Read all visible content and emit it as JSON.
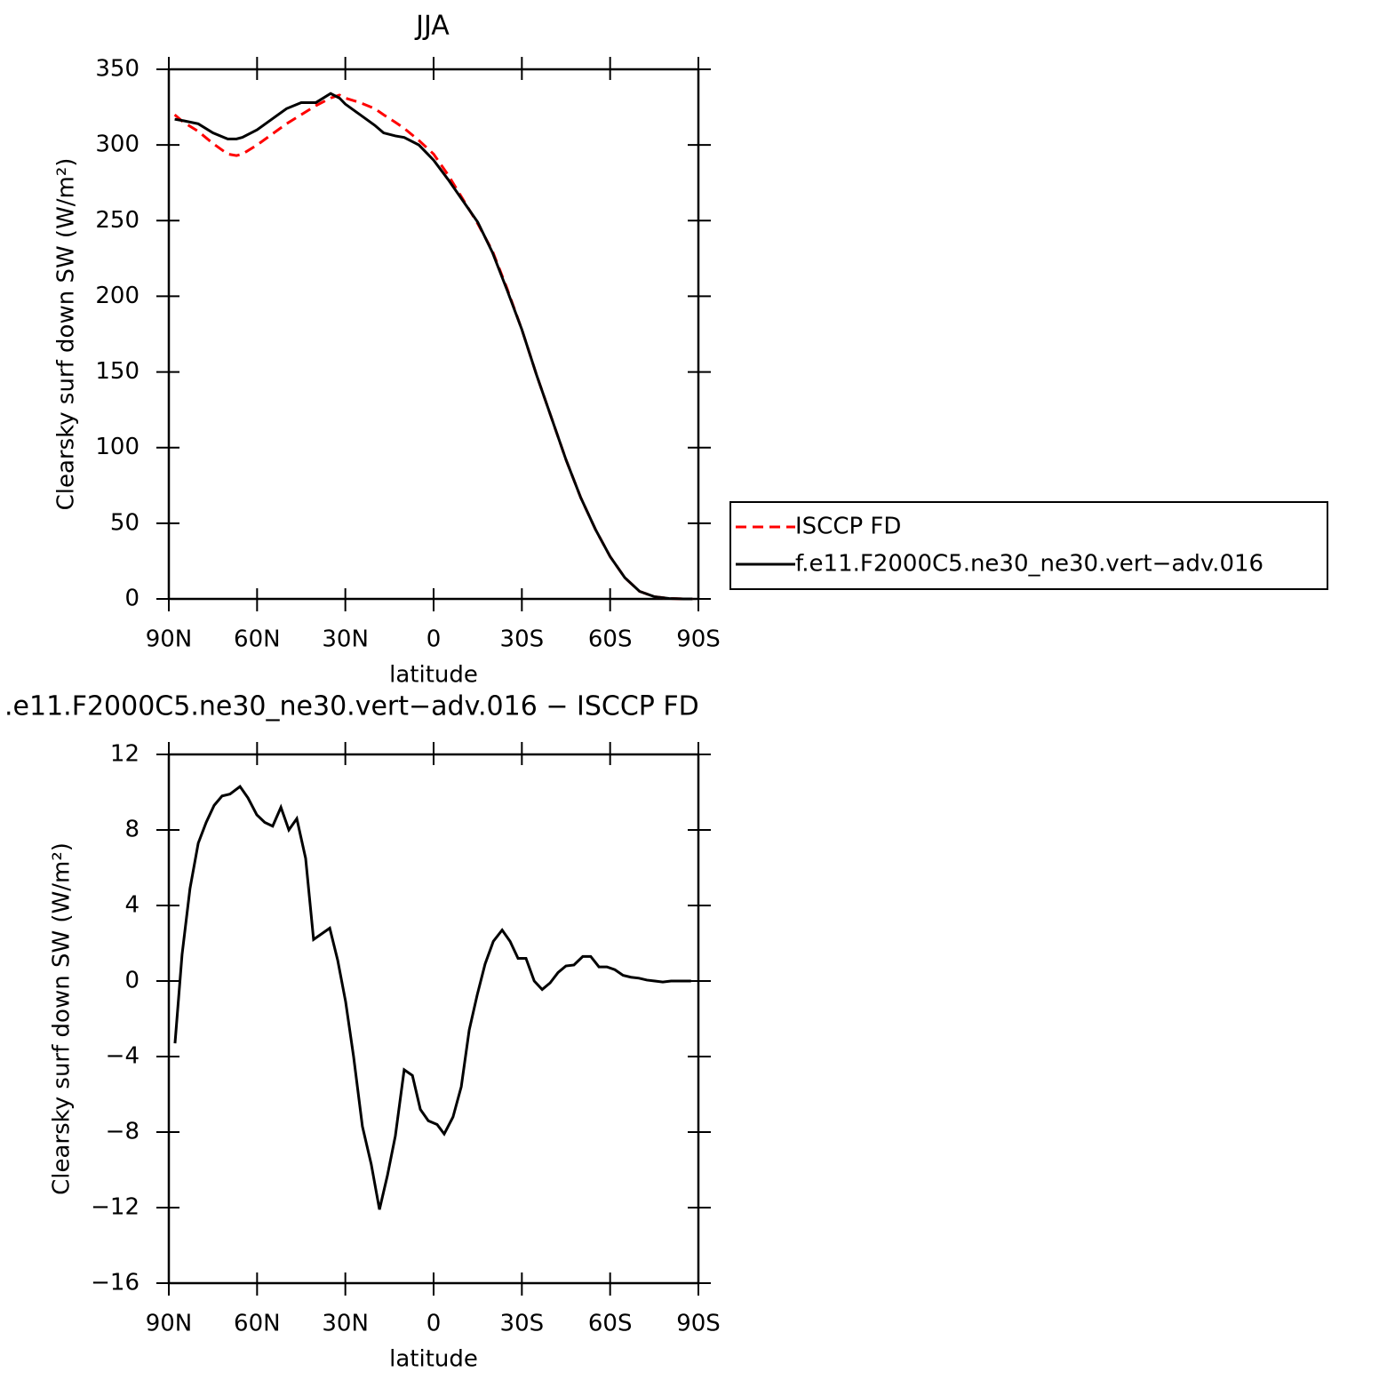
{
  "chart_data": [
    {
      "type": "line",
      "title": "JJA",
      "xlabel": "latitude",
      "ylabel": "Clearsky surf down SW (W/m²)",
      "x": [
        88,
        85,
        80,
        75,
        70,
        67,
        65,
        60,
        55,
        50,
        45,
        40,
        35,
        32,
        30,
        25,
        20,
        17,
        13,
        10,
        5,
        0,
        -5,
        -10,
        -15,
        -20,
        -25,
        -30,
        -35,
        -40,
        -45,
        -50,
        -55,
        -60,
        -65,
        -70,
        -75,
        -80,
        -85,
        -88
      ],
      "series": [
        {
          "name": "ISCCP FD",
          "color": "#ff0000",
          "dashed": true,
          "values": [
            320,
            315,
            309,
            301,
            294,
            293,
            294,
            300,
            307,
            314,
            320,
            326,
            331,
            333,
            331,
            328,
            324,
            320,
            315,
            311,
            303,
            294,
            280,
            264,
            248,
            230,
            205,
            178,
            148,
            120,
            92,
            67,
            46,
            28,
            14,
            5,
            1.5,
            0.3,
            0,
            0
          ]
        },
        {
          "name": "f.e11.F2000C5.ne30_ne30.vert−adv.016",
          "color": "#000000",
          "dashed": false,
          "values": [
            317,
            316,
            314,
            308,
            304,
            304,
            305,
            310,
            317,
            324,
            328,
            328,
            334,
            331,
            327,
            320,
            313,
            308,
            306,
            305,
            300,
            290,
            277,
            263,
            249,
            229,
            204,
            178,
            148,
            120,
            92,
            67,
            46,
            28,
            14,
            5,
            1.5,
            0.3,
            0,
            0
          ]
        }
      ],
      "xlim": [
        90,
        -90
      ],
      "xticks": [
        {
          "value": 90,
          "label": "90N"
        },
        {
          "value": 60,
          "label": "60N"
        },
        {
          "value": 30,
          "label": "30N"
        },
        0,
        {
          "value": -30,
          "label": "30S"
        },
        {
          "value": -60,
          "label": "60S"
        },
        {
          "value": -90,
          "label": "90S"
        }
      ],
      "ylim": [
        0,
        350
      ],
      "yticks": [
        0,
        50,
        100,
        150,
        200,
        250,
        300,
        350
      ],
      "legend": true
    },
    {
      "type": "line",
      "title": ".e11.F2000C5.ne30_ne30.vert−adv.016 − ISCCP FD",
      "xlabel": "latitude",
      "ylabel": "Clearsky surf down SW (W/m²)",
      "x": [
        87.9,
        85.5,
        82.8,
        80,
        77.3,
        74.6,
        71.9,
        69.2,
        65.8,
        63.1,
        60.1,
        57.4,
        54.7,
        51.9,
        49.2,
        46.5,
        43.5,
        40.8,
        35.3,
        32.6,
        29.9,
        27.2,
        24.2,
        21.2,
        18.4,
        15.7,
        13,
        10,
        7.2,
        4.5,
        1.8,
        -1.2,
        -3.6,
        -6.6,
        -9.4,
        -12.1,
        -14.8,
        -17.5,
        -20.3,
        -23.3,
        -26,
        -28.7,
        -31.4,
        -34.2,
        -36.9,
        -39.6,
        -42.3,
        -45,
        -47.7,
        -50.7,
        -53.4,
        -56.2,
        -58.9,
        -61.6,
        -64.4,
        -67.1,
        -69.8,
        -72.5,
        -75.2,
        -77.9,
        -80.7,
        -83.4,
        -87.5
      ],
      "series": [
        {
          "color": "#000000",
          "dashed": false,
          "values": [
            -3.3,
            1.4,
            4.9,
            7.3,
            8.4,
            9.3,
            9.8,
            9.9,
            10.3,
            9.7,
            8.8,
            8.4,
            8.2,
            9.2,
            8.0,
            8.6,
            6.5,
            2.2,
            2.8,
            1.1,
            -1.1,
            -4.0,
            -7.7,
            -9.7,
            -12.1,
            -10.3,
            -8.2,
            -4.7,
            -5.0,
            -6.8,
            -7.4,
            -7.6,
            -8.1,
            -7.2,
            -5.6,
            -2.6,
            -0.75,
            0.9,
            2.1,
            2.7,
            2.1,
            1.2,
            1.2,
            0,
            -0.45,
            -0.1,
            0.45,
            0.8,
            0.85,
            1.3,
            1.3,
            0.75,
            0.75,
            0.6,
            0.3,
            0.2,
            0.15,
            0.05,
            0,
            -0.05,
            0,
            0,
            0
          ]
        }
      ],
      "xlim": [
        90,
        -90
      ],
      "xticks": [
        {
          "value": 90,
          "label": "90N"
        },
        {
          "value": 60,
          "label": "60N"
        },
        {
          "value": 30,
          "label": "30N"
        },
        0,
        {
          "value": -30,
          "label": "30S"
        },
        {
          "value": -60,
          "label": "60S"
        },
        {
          "value": -90,
          "label": "90S"
        }
      ],
      "ylim": [
        -16,
        12
      ],
      "yticks": [
        {
          "value": -16,
          "label": "−16"
        },
        {
          "value": -12,
          "label": "−12"
        },
        {
          "value": -8,
          "label": "−8"
        },
        {
          "value": -4,
          "label": "−4"
        },
        0,
        4,
        8,
        12
      ],
      "legend": false
    }
  ]
}
